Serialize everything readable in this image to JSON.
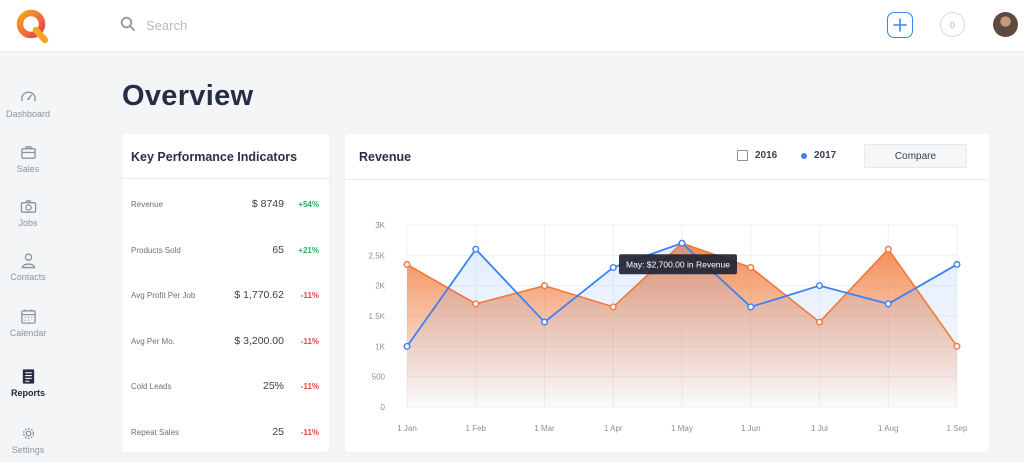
{
  "colors": {
    "accent": "#3b82f6",
    "orange": "#f07838",
    "positive": "#27ae60",
    "negative": "#e24343"
  },
  "header": {
    "logo_icon": "q-logo-icon",
    "search_placeholder": "Search",
    "notifications_count": "0"
  },
  "sidebar": {
    "items": [
      {
        "label": "Dashboard",
        "icon": "speedometer-icon",
        "active": false
      },
      {
        "label": "Sales",
        "icon": "briefcase-icon",
        "active": false
      },
      {
        "label": "Jobs",
        "icon": "camera-icon",
        "active": false
      },
      {
        "label": "Contacts",
        "icon": "person-icon",
        "active": false
      },
      {
        "label": "Calendar",
        "icon": "calendar-icon",
        "active": false
      },
      {
        "label": "Reports",
        "icon": "reports-icon",
        "active": true
      },
      {
        "label": "Settings",
        "icon": "gear-icon",
        "active": false
      }
    ]
  },
  "main": {
    "title": "Overview"
  },
  "kpi": {
    "title": "Key Performance Indicators",
    "rows": [
      {
        "label": "Revenue",
        "value": "$ 8749",
        "change": "+54%",
        "direction": "up"
      },
      {
        "label": "Products Sold",
        "value": "65",
        "change": "+21%",
        "direction": "up"
      },
      {
        "label": "Avg Profit Per Job",
        "value": "$ 1,770.62",
        "change": "-11%",
        "direction": "down"
      },
      {
        "label": "Avg Per Mo.",
        "value": "$ 3,200.00",
        "change": "-11%",
        "direction": "down"
      },
      {
        "label": "Cold Leads",
        "value": "25%",
        "change": "-11%",
        "direction": "down"
      },
      {
        "label": "Repeat Sales",
        "value": "25",
        "change": "-11%",
        "direction": "down"
      }
    ]
  },
  "revenue": {
    "title": "Revenue",
    "legend_2016": "2016",
    "legend_2017": "2017",
    "compare_label": "Compare",
    "tooltip": "May: $2,700.00 in Revenue"
  },
  "chart_data": {
    "type": "area",
    "categories": [
      "1 Jan",
      "1 Feb",
      "1 Mar",
      "1 Apr",
      "1 May",
      "1 Jun",
      "1 Jul",
      "1 Aug",
      "1 Sep"
    ],
    "series": [
      {
        "name": "2017",
        "color": "#3b82f6",
        "values": [
          1000,
          2600,
          1400,
          2300,
          2700,
          1650,
          2000,
          1700,
          2350
        ]
      },
      {
        "name": "2016",
        "color": "#f07838",
        "values": [
          2350,
          1700,
          2000,
          1650,
          2700,
          2300,
          1400,
          2600,
          1000
        ]
      }
    ],
    "yticks": [
      "0",
      "500",
      "1K",
      "1.5K",
      "2K",
      "2.5K",
      "3K"
    ],
    "ylim": [
      0,
      3000
    ],
    "grid": true,
    "legend": "top-right"
  }
}
